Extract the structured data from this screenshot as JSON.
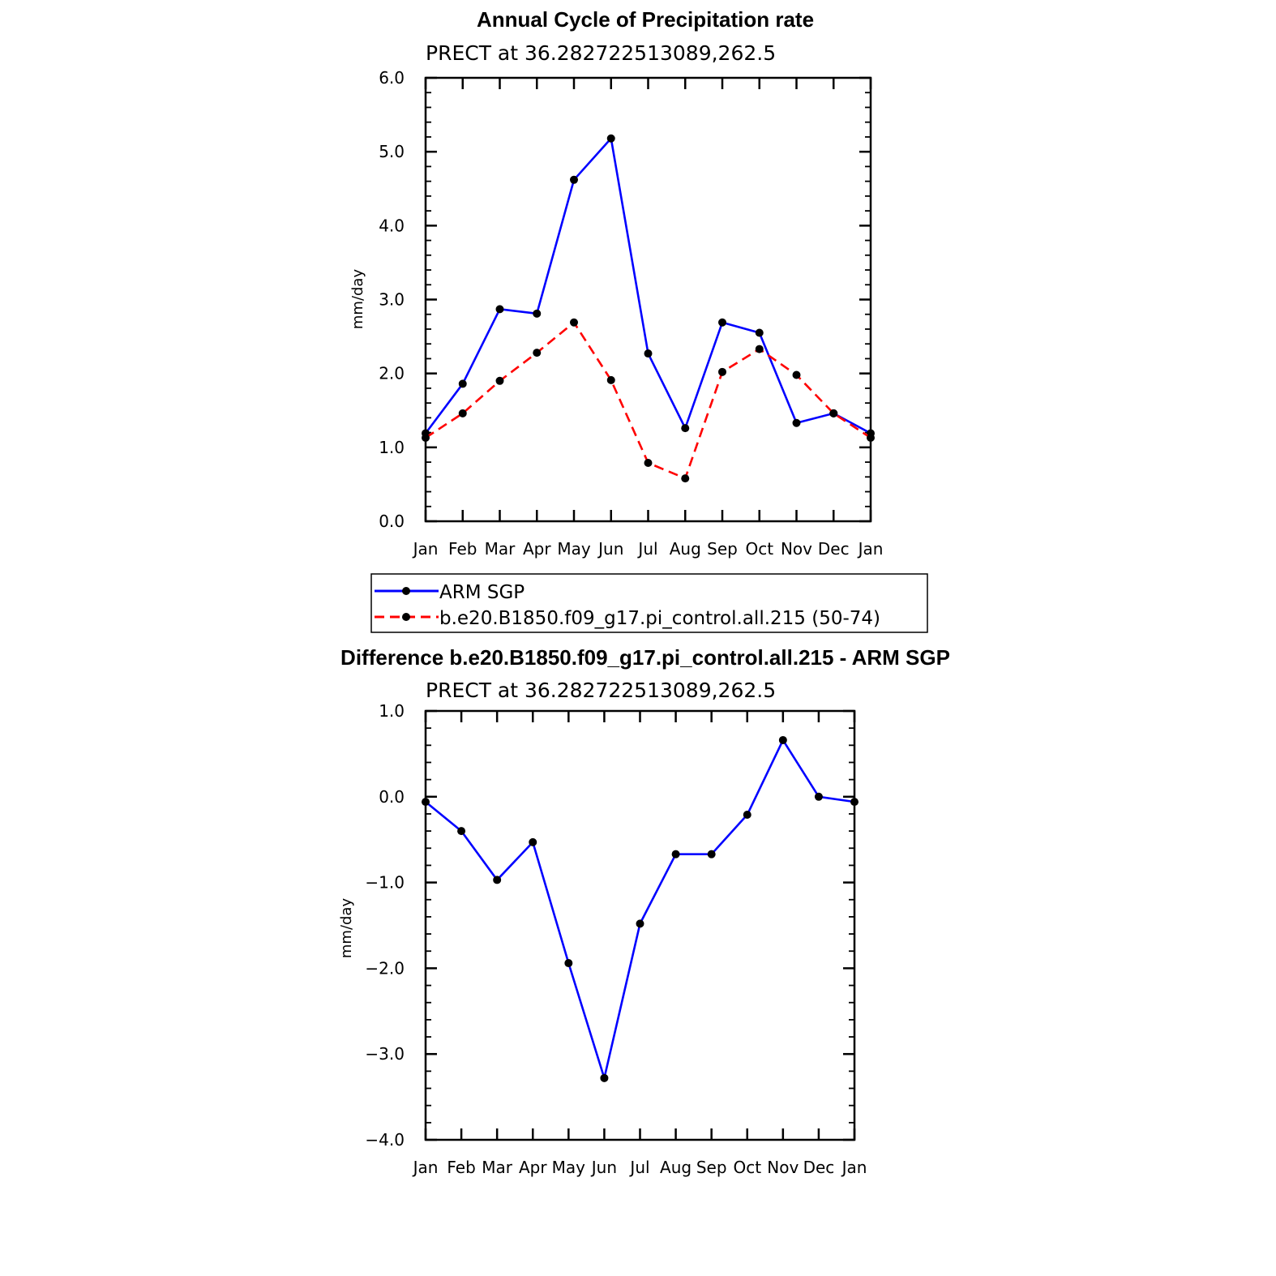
{
  "chart_data": [
    {
      "type": "line",
      "title": "Annual Cycle of Precipitation rate",
      "subtitle": "PRECT at 36.282722513089,262.5",
      "xlabel": "",
      "ylabel": "mm/day",
      "categories": [
        "Jan",
        "Feb",
        "Mar",
        "Apr",
        "May",
        "Jun",
        "Jul",
        "Aug",
        "Sep",
        "Oct",
        "Nov",
        "Dec",
        "Jan"
      ],
      "ylim": [
        0.0,
        6.0
      ],
      "yticks": [
        "0.0",
        "1.0",
        "2.0",
        "3.0",
        "4.0",
        "5.0",
        "6.0"
      ],
      "grid": false,
      "legend_placement": "bottom",
      "series": [
        {
          "name": "ARM SGP",
          "color": "#0000ff",
          "dash": "solid",
          "marker": "dot",
          "values": [
            1.19,
            1.86,
            2.87,
            2.81,
            4.62,
            5.18,
            2.27,
            1.26,
            2.69,
            2.55,
            1.33,
            1.46,
            1.19
          ]
        },
        {
          "name": "b.e20.B1850.f09_g17.pi_control.all.215 (50-74)",
          "color": "#ff0000",
          "dash": "dashed",
          "marker": "dot",
          "values": [
            1.13,
            1.46,
            1.9,
            2.28,
            2.69,
            1.91,
            0.79,
            0.58,
            2.02,
            2.33,
            1.98,
            1.46,
            1.13
          ]
        }
      ]
    },
    {
      "type": "line",
      "title": "Difference b.e20.B1850.f09_g17.pi_control.all.215 - ARM SGP",
      "subtitle": "PRECT at 36.282722513089,262.5",
      "xlabel": "",
      "ylabel": "mm/day",
      "categories": [
        "Jan",
        "Feb",
        "Mar",
        "Apr",
        "May",
        "Jun",
        "Jul",
        "Aug",
        "Sep",
        "Oct",
        "Nov",
        "Dec",
        "Jan"
      ],
      "ylim": [
        -4.0,
        1.0
      ],
      "yticks": [
        "−4.0",
        "−3.0",
        "−2.0",
        "−1.0",
        "0.0",
        "1.0"
      ],
      "grid": false,
      "series": [
        {
          "color": "#0000ff",
          "dash": "solid",
          "marker": "dot",
          "values": [
            -0.06,
            -0.4,
            -0.97,
            -0.53,
            -1.94,
            -3.28,
            -1.48,
            -0.67,
            -0.67,
            -0.21,
            0.66,
            0.0,
            -0.06
          ]
        }
      ]
    }
  ]
}
